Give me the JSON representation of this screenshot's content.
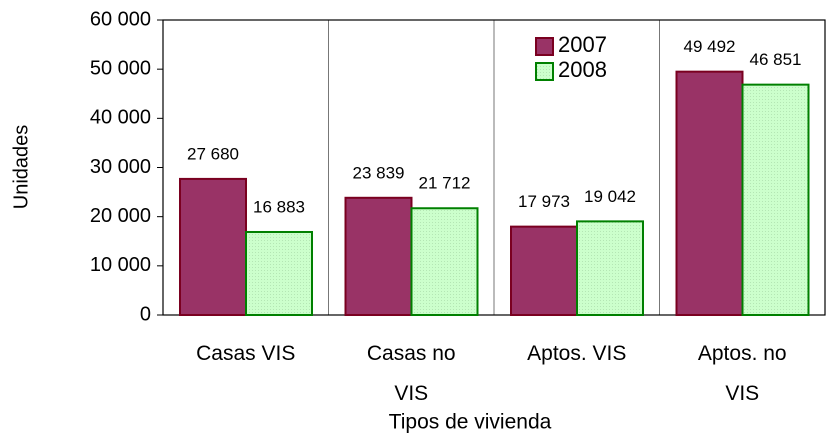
{
  "chart_data": {
    "type": "bar",
    "x_label": "Tipos de vivienda",
    "y_label": "Unidades",
    "categories": [
      "Casas VIS",
      "Casas no VIS",
      "Aptos. VIS",
      "Aptos. no VIS"
    ],
    "series": [
      {
        "name": "2007",
        "color": "#993366",
        "values": [
          27680,
          23839,
          17973,
          49492
        ],
        "value_labels": [
          "27 680",
          "23 839",
          "17 973",
          "49 492"
        ]
      },
      {
        "name": "2008",
        "color": "#ccffcc",
        "values": [
          16883,
          21712,
          19042,
          46851
        ],
        "value_labels": [
          "16 883",
          "21 712",
          "19 042",
          "46 851"
        ]
      }
    ],
    "ylim": [
      0,
      60000
    ],
    "yticks": [
      0,
      {
        "value": 10000,
        "label": "10 000"
      },
      {
        "value": 20000,
        "label": "20 000"
      },
      {
        "value": 30000,
        "label": "30 000"
      },
      {
        "value": 40000,
        "label": "40 000"
      },
      {
        "value": 50000,
        "label": "50 000"
      },
      {
        "value": 60000,
        "label": "60 000"
      }
    ],
    "legend": "top-right"
  }
}
